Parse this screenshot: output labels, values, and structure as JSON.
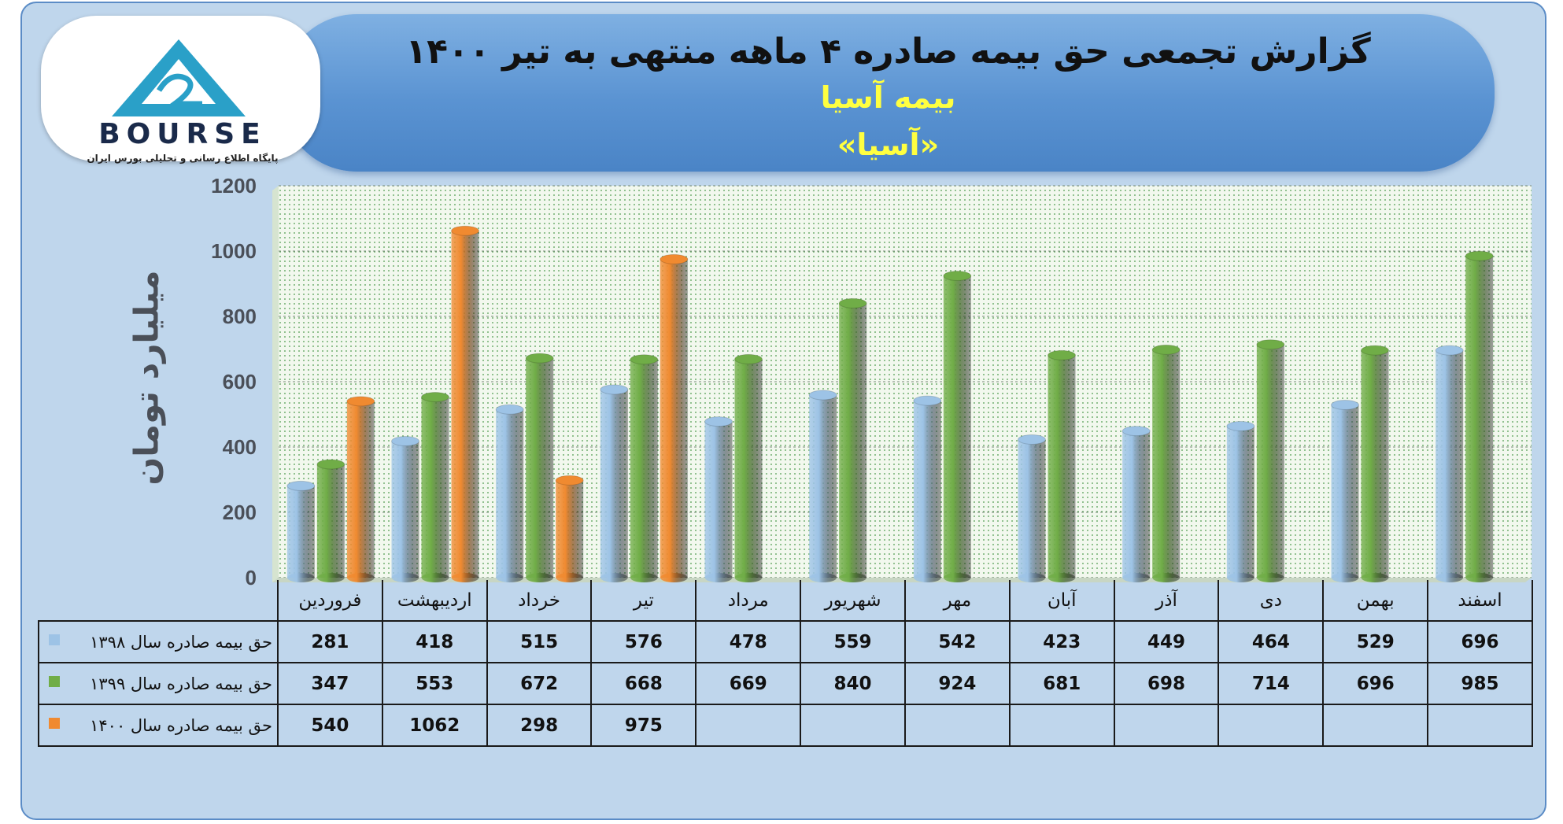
{
  "header": {
    "title": "گزارش تجمعی حق بیمه صادره ۴ ماهه منتهی به تیر ۱۴۰۰",
    "company": "بیمه آسیا",
    "symbol": "«آسیا»"
  },
  "logo": {
    "text": "BOURSE",
    "subtitle": "پایگاه اطلاع رسانی و تحلیلی بورس ایران"
  },
  "chart_data": {
    "type": "bar",
    "ylabel": "میلیارد تومان",
    "ylim": [
      0,
      1200
    ],
    "yticks": [
      0,
      200,
      400,
      600,
      800,
      1000,
      1200
    ],
    "categories": [
      "فروردین",
      "اردیبهشت",
      "خرداد",
      "تیر",
      "مرداد",
      "شهریور",
      "مهر",
      "آبان",
      "آذر",
      "دی",
      "بهمن",
      "اسفند"
    ],
    "series": [
      {
        "name": "حق بیمه صادره سال ۱۳۹۸",
        "color": "#9dc3e6",
        "values": [
          281,
          418,
          515,
          576,
          478,
          559,
          542,
          423,
          449,
          464,
          529,
          696
        ]
      },
      {
        "name": "حق بیمه صادره سال ۱۳۹۹",
        "color": "#70ad47",
        "values": [
          347,
          553,
          672,
          668,
          669,
          840,
          924,
          681,
          698,
          714,
          696,
          985
        ]
      },
      {
        "name": "حق بیمه صادره سال ۱۴۰۰",
        "color": "#f08a30",
        "values": [
          540,
          1062,
          298,
          975,
          null,
          null,
          null,
          null,
          null,
          null,
          null,
          null
        ]
      }
    ],
    "grid": true,
    "legend": "table-left"
  }
}
